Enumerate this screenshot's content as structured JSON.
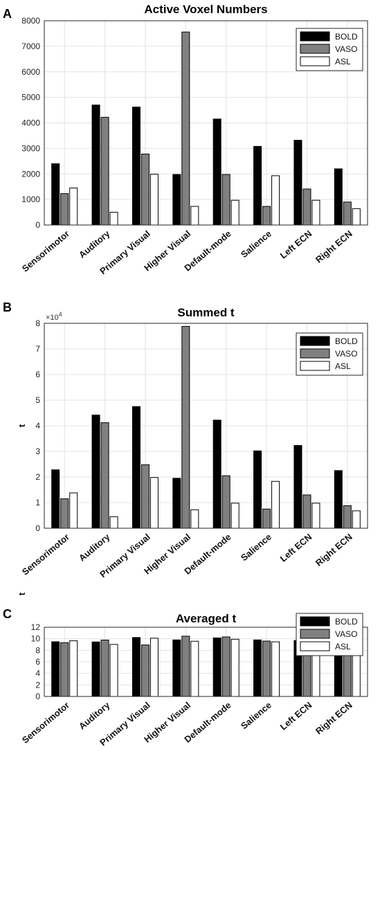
{
  "chart_data": [
    {
      "type": "bar",
      "panel": "A",
      "title": "Active Voxel Numbers",
      "ylabel": "",
      "ylim": [
        0,
        8000
      ],
      "yticks": [
        "0",
        "1000",
        "2000",
        "3000",
        "4000",
        "5000",
        "6000",
        "7000",
        "8000"
      ],
      "multiplier": "",
      "categories": [
        "Sensorimotor",
        "Auditory",
        "Primary Visual",
        "Higher Visual",
        "Default-mode",
        "Salience",
        "Left ECN",
        "Right ECN"
      ],
      "series": [
        {
          "name": "BOLD",
          "color": "#000000",
          "values": [
            2400,
            4700,
            4620,
            1980,
            4150,
            3080,
            3320,
            2200
          ]
        },
        {
          "name": "VASO",
          "color": "#808080",
          "values": [
            1230,
            4220,
            2780,
            7560,
            1980,
            730,
            1410,
            900
          ]
        },
        {
          "name": "ASL",
          "color": "#ffffff",
          "values": [
            1450,
            500,
            1990,
            730,
            970,
            1930,
            970,
            640
          ]
        }
      ],
      "legend_position": "top-right",
      "grid": true
    },
    {
      "type": "bar",
      "panel": "B",
      "title": "Summed t",
      "ylabel": "t",
      "ylim": [
        0,
        8
      ],
      "yticks": [
        "0",
        "1",
        "2",
        "3",
        "4",
        "5",
        "6",
        "7",
        "8"
      ],
      "multiplier": "×10",
      "multiplier_exponent": "4",
      "categories": [
        "Sensorimotor",
        "Auditory",
        "Primary Visual",
        "Higher Visual",
        "Default-mode",
        "Salience",
        "Left ECN",
        "Right ECN"
      ],
      "series": [
        {
          "name": "BOLD",
          "color": "#000000",
          "values": [
            2.28,
            4.42,
            4.75,
            1.95,
            4.22,
            3.02,
            3.23,
            2.25
          ]
        },
        {
          "name": "VASO",
          "color": "#808080",
          "values": [
            1.15,
            4.12,
            2.48,
            7.88,
            2.05,
            0.75,
            1.3,
            0.88
          ]
        },
        {
          "name": "ASL",
          "color": "#ffffff",
          "values": [
            1.38,
            0.45,
            1.98,
            0.72,
            0.98,
            1.83,
            0.98,
            0.68
          ]
        }
      ],
      "legend_position": "top-right",
      "grid": true
    },
    {
      "type": "bar",
      "panel": "C",
      "title": "Averaged t",
      "ylabel": "t",
      "ylim": [
        0,
        12
      ],
      "yticks": [
        "0",
        "2",
        "4",
        "6",
        "8",
        "10",
        "12"
      ],
      "multiplier": "",
      "categories": [
        "Sensorimotor",
        "Auditory",
        "Primary Visual",
        "Higher Visual",
        "Default-mode",
        "Salience",
        "Left ECN",
        "Right ECN"
      ],
      "series": [
        {
          "name": "BOLD",
          "color": "#000000",
          "values": [
            9.48,
            9.45,
            10.22,
            9.8,
            10.15,
            9.8,
            9.7,
            10.28
          ]
        },
        {
          "name": "VASO",
          "color": "#808080",
          "values": [
            9.33,
            9.78,
            8.93,
            10.45,
            10.32,
            9.6,
            9.2,
            9.45
          ]
        },
        {
          "name": "ASL",
          "color": "#ffffff",
          "values": [
            9.65,
            9.02,
            10.1,
            9.57,
            9.92,
            9.47,
            9.85,
            10.05
          ]
        }
      ],
      "legend_position": "top-right",
      "grid": true
    }
  ]
}
